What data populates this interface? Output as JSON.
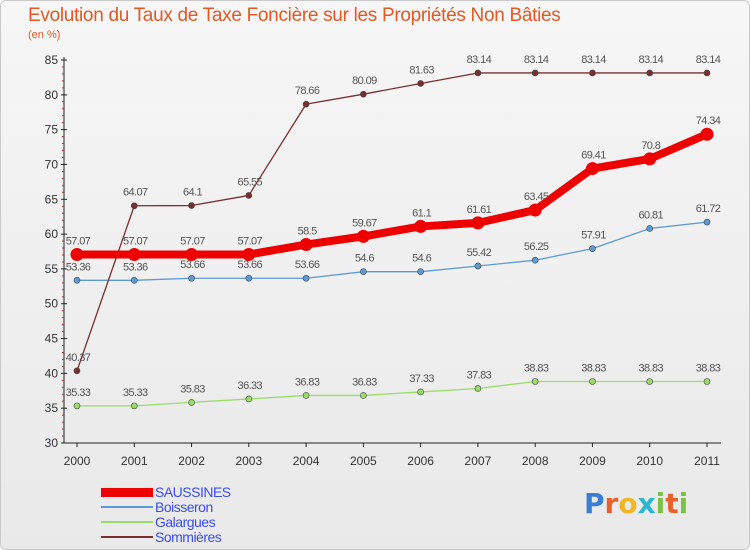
{
  "chart_data": {
    "type": "line",
    "title": "Evolution du Taux de Taxe Foncière sur les Propriétés Non Bâties",
    "subtitle": "(en %)",
    "xlabel": "",
    "ylabel": "",
    "categories": [
      "2000",
      "2001",
      "2002",
      "2003",
      "2004",
      "2005",
      "2006",
      "2007",
      "2008",
      "2009",
      "2010",
      "2011"
    ],
    "ylim": [
      30,
      85
    ],
    "yticks": [
      "30",
      "35",
      "40",
      "45",
      "50",
      "55",
      "60",
      "65",
      "70",
      "75",
      "80",
      "85"
    ],
    "grid": false,
    "legend_position": "bottom-left",
    "series": [
      {
        "name": "SAUSSINES",
        "color": "#ee0000",
        "emphasis": true,
        "values": [
          57.07,
          57.07,
          57.07,
          57.07,
          58.5,
          59.67,
          61.1,
          61.61,
          63.45,
          69.41,
          70.8,
          74.34
        ],
        "labels": [
          "57.07",
          "57.07",
          "57.07",
          "57.07",
          "58.5",
          "59.67",
          "61.1",
          "61.61",
          "63.45",
          "69.41",
          "70.8",
          "74.34"
        ]
      },
      {
        "name": "Boisseron",
        "color": "#5b9bd5",
        "emphasis": false,
        "values": [
          53.36,
          53.36,
          53.66,
          53.66,
          53.66,
          54.6,
          54.6,
          55.42,
          56.25,
          57.91,
          60.81,
          61.72
        ],
        "labels": [
          "53.36",
          "53.36",
          "53.66",
          "53.66",
          "53.66",
          "54.6",
          "54.6",
          "55.42",
          "56.25",
          "57.91",
          "60.81",
          "61.72"
        ]
      },
      {
        "name": "Galargues",
        "color": "#99dd66",
        "emphasis": false,
        "values": [
          35.33,
          35.33,
          35.83,
          36.33,
          36.83,
          36.83,
          37.33,
          37.83,
          38.83,
          38.83,
          38.83,
          38.83
        ],
        "labels": [
          "35.33",
          "35.33",
          "35.83",
          "36.33",
          "36.83",
          "36.83",
          "37.33",
          "37.83",
          "38.83",
          "38.83",
          "38.83",
          "38.83"
        ]
      },
      {
        "name": "Sommières",
        "color": "#7a2e2e",
        "emphasis": false,
        "values": [
          40.37,
          64.07,
          64.1,
          65.55,
          78.66,
          80.09,
          81.63,
          83.14,
          83.14,
          83.14,
          83.14,
          83.14
        ],
        "labels": [
          "40.37",
          "64.07",
          "64.1",
          "65.55",
          "78.66",
          "80.09",
          "81.63",
          "83.14",
          "83.14",
          "83.14",
          "83.14",
          "83.14"
        ]
      }
    ]
  },
  "brand": {
    "logo_letters": [
      "P",
      "r",
      "o",
      "x",
      "i",
      "t",
      "i"
    ],
    "logo_colors": [
      "#3a7fd5",
      "#e8612c",
      "#f2b622",
      "#2fb5d0",
      "#7cc143",
      "#e8612c",
      "#7cc143"
    ]
  }
}
